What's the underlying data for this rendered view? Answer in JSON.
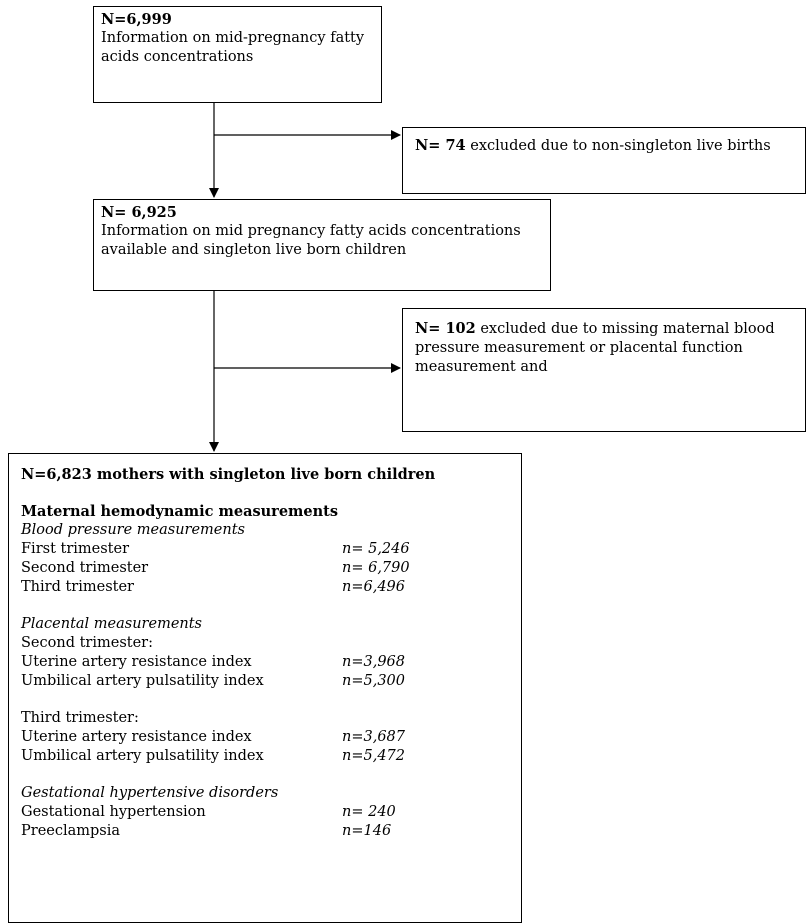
{
  "box1": {
    "n": "N=6,999",
    "text": "Information on mid-pregnancy fatty acids concentrations"
  },
  "box2": {
    "n": "N= 74",
    "text": " excluded due to non-singleton live births"
  },
  "box3": {
    "n": "N= 6,925",
    "text": "Information on mid pregnancy fatty acids concentrations available and singleton live born children"
  },
  "box4": {
    "n": "N= 102",
    "text": " excluded due to missing maternal blood pressure measurement or placental function measurement and"
  },
  "box5": {
    "title": "N=6,823 mothers with singleton live born children",
    "section_heading": "Maternal hemodynamic measurements",
    "blood_pressure": {
      "heading": "Blood pressure measurements",
      "rows": [
        {
          "label": "First trimester",
          "value": "n= 5,246"
        },
        {
          "label": "Second trimester",
          "value": "n= 6,790"
        },
        {
          "label": "Third trimester",
          "value": "n=6,496"
        }
      ]
    },
    "placental": {
      "heading": "Placental measurements",
      "second_label": "Second trimester:",
      "second_rows": [
        {
          "label": "Uterine artery resistance index",
          "value": "n=3,968"
        },
        {
          "label": "Umbilical artery pulsatility index",
          "value": "n=5,300"
        }
      ],
      "third_label": "Third trimester:",
      "third_rows": [
        {
          "label": "Uterine artery resistance index",
          "value": "n=3,687"
        },
        {
          "label": "Umbilical artery pulsatility index",
          "value": "n=5,472"
        }
      ]
    },
    "hypertensive": {
      "heading": "Gestational hypertensive disorders",
      "rows": [
        {
          "label": "Gestational hypertension",
          "value": "n= 240"
        },
        {
          "label": "Preeclampsia",
          "value": "n=146"
        }
      ]
    }
  }
}
